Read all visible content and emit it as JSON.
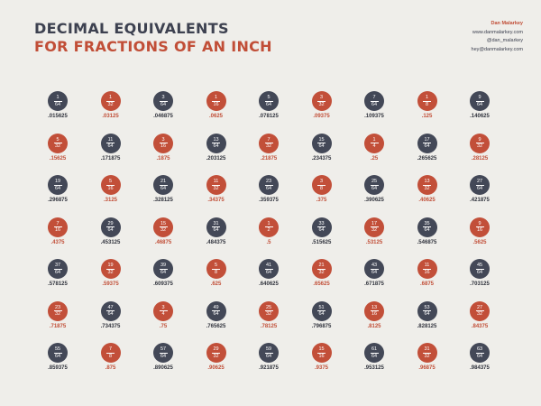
{
  "header": {
    "title_line1": "DECIMAL EQUIVALENTS",
    "title_line2": "FOR FRACTIONS OF AN INCH"
  },
  "author": {
    "name": "Dan Malarkey",
    "website": "www.danmalarkey.com",
    "handle": "@dan_malarkey",
    "email": "hey@danmalarkey.com"
  },
  "colors": {
    "background": "#efeeea",
    "dark_circle": "#434857",
    "red_circle": "#c24f39",
    "red_text": "#c14e37",
    "dark_text": "#2f323c"
  },
  "fractions": [
    {
      "num": "1",
      "den": "64",
      "dec": ".015625"
    },
    {
      "num": "1",
      "den": "32",
      "dec": ".03125"
    },
    {
      "num": "3",
      "den": "64",
      "dec": ".046875"
    },
    {
      "num": "1",
      "den": "16",
      "dec": ".0625"
    },
    {
      "num": "5",
      "den": "64",
      "dec": ".078125"
    },
    {
      "num": "3",
      "den": "32",
      "dec": ".09375"
    },
    {
      "num": "7",
      "den": "64",
      "dec": ".109375"
    },
    {
      "num": "1",
      "den": "8",
      "dec": ".125"
    },
    {
      "num": "9",
      "den": "64",
      "dec": ".140625"
    },
    {
      "num": "5",
      "den": "32",
      "dec": ".15625"
    },
    {
      "num": "11",
      "den": "64",
      "dec": ".171875"
    },
    {
      "num": "3",
      "den": "16",
      "dec": ".1875"
    },
    {
      "num": "13",
      "den": "64",
      "dec": ".203125"
    },
    {
      "num": "7",
      "den": "32",
      "dec": ".21875"
    },
    {
      "num": "15",
      "den": "64",
      "dec": ".234375"
    },
    {
      "num": "1",
      "den": "4",
      "dec": ".25"
    },
    {
      "num": "17",
      "den": "64",
      "dec": ".265625"
    },
    {
      "num": "9",
      "den": "32",
      "dec": ".28125"
    },
    {
      "num": "19",
      "den": "64",
      "dec": ".296875"
    },
    {
      "num": "5",
      "den": "16",
      "dec": ".3125"
    },
    {
      "num": "21",
      "den": "64",
      "dec": ".328125"
    },
    {
      "num": "11",
      "den": "32",
      "dec": ".34375"
    },
    {
      "num": "23",
      "den": "64",
      "dec": ".359375"
    },
    {
      "num": "3",
      "den": "8",
      "dec": ".375"
    },
    {
      "num": "25",
      "den": "64",
      "dec": ".390625"
    },
    {
      "num": "13",
      "den": "32",
      "dec": ".40625"
    },
    {
      "num": "27",
      "den": "64",
      "dec": ".421875"
    },
    {
      "num": "7",
      "den": "16",
      "dec": ".4375"
    },
    {
      "num": "29",
      "den": "64",
      "dec": ".453125"
    },
    {
      "num": "15",
      "den": "32",
      "dec": ".46875"
    },
    {
      "num": "31",
      "den": "64",
      "dec": ".484375"
    },
    {
      "num": "1",
      "den": "2",
      "dec": ".5"
    },
    {
      "num": "33",
      "den": "64",
      "dec": ".515625"
    },
    {
      "num": "17",
      "den": "32",
      "dec": ".53125"
    },
    {
      "num": "35",
      "den": "64",
      "dec": ".546875"
    },
    {
      "num": "9",
      "den": "16",
      "dec": ".5625"
    },
    {
      "num": "37",
      "den": "64",
      "dec": ".578125"
    },
    {
      "num": "19",
      "den": "32",
      "dec": ".59375"
    },
    {
      "num": "39",
      "den": "64",
      "dec": ".609375"
    },
    {
      "num": "5",
      "den": "8",
      "dec": ".625"
    },
    {
      "num": "41",
      "den": "64",
      "dec": ".640625"
    },
    {
      "num": "21",
      "den": "32",
      "dec": ".65625"
    },
    {
      "num": "43",
      "den": "64",
      "dec": ".671875"
    },
    {
      "num": "11",
      "den": "16",
      "dec": ".6875"
    },
    {
      "num": "45",
      "den": "64",
      "dec": ".703125"
    },
    {
      "num": "23",
      "den": "32",
      "dec": ".71875"
    },
    {
      "num": "47",
      "den": "64",
      "dec": ".734375"
    },
    {
      "num": "3",
      "den": "4",
      "dec": ".75"
    },
    {
      "num": "49",
      "den": "64",
      "dec": ".765625"
    },
    {
      "num": "25",
      "den": "32",
      "dec": ".78125"
    },
    {
      "num": "51",
      "den": "64",
      "dec": ".796875"
    },
    {
      "num": "13",
      "den": "16",
      "dec": ".8125"
    },
    {
      "num": "53",
      "den": "64",
      "dec": ".828125"
    },
    {
      "num": "27",
      "den": "32",
      "dec": ".84375"
    },
    {
      "num": "55",
      "den": "64",
      "dec": ".859375"
    },
    {
      "num": "7",
      "den": "8",
      "dec": ".875"
    },
    {
      "num": "57",
      "den": "64",
      "dec": ".890625"
    },
    {
      "num": "29",
      "den": "32",
      "dec": ".90625"
    },
    {
      "num": "59",
      "den": "64",
      "dec": ".921875"
    },
    {
      "num": "15",
      "den": "16",
      "dec": ".9375"
    },
    {
      "num": "61",
      "den": "64",
      "dec": ".953125"
    },
    {
      "num": "31",
      "den": "32",
      "dec": ".96875"
    },
    {
      "num": "63",
      "den": "64",
      "dec": ".984375"
    }
  ]
}
